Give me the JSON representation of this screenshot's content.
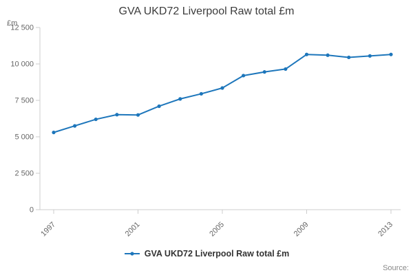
{
  "chart_data": {
    "type": "line",
    "title": "GVA UKD72 Liverpool Raw total £m",
    "ylabel": "£m",
    "legend_label": "GVA UKD72 Liverpool Raw total £m",
    "source_label": "Source:",
    "x": [
      1997,
      1998,
      1999,
      2000,
      2001,
      2002,
      2003,
      2004,
      2005,
      2006,
      2007,
      2008,
      2009,
      2010,
      2011,
      2012,
      2013
    ],
    "values": [
      5300,
      5750,
      6200,
      6520,
      6500,
      7100,
      7600,
      7950,
      8350,
      9200,
      9450,
      9650,
      10650,
      10600,
      10450,
      10550,
      10650
    ],
    "ylim": [
      0,
      12500
    ],
    "yticks": [
      0,
      2500,
      5000,
      7500,
      10000,
      12500
    ],
    "ytick_labels": [
      "0",
      "2 500",
      "5 000",
      "7 500",
      "10 000",
      "12 500"
    ],
    "xtick_years": [
      1997,
      2001,
      2005,
      2009,
      2013
    ],
    "xtick_labels": [
      "1997",
      "2001",
      "2005",
      "2009",
      "2013"
    ],
    "line_color": "#1d76bb",
    "axis_color": "#cccccc",
    "tick_label_color": "#666666",
    "grid": false,
    "legend_position": "bottom"
  }
}
